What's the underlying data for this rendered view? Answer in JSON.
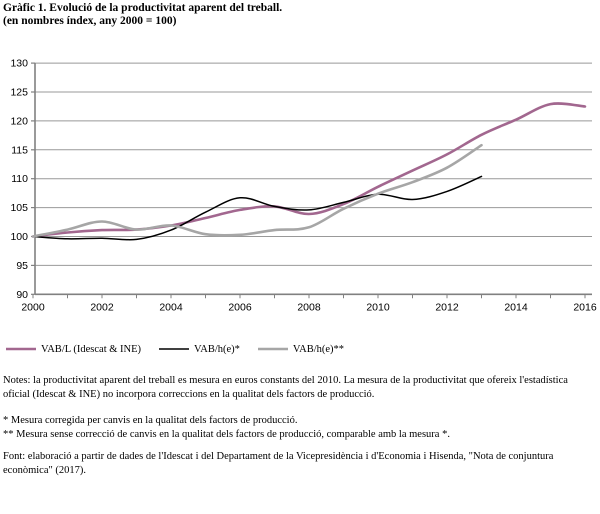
{
  "title": "Gràfic 1. Evolució de la productivitat aparent del treball.",
  "subtitle": "(en nombres índex, any 2000 = 100)",
  "chart_data": {
    "type": "line",
    "x": [
      2000,
      2001,
      2002,
      2003,
      2004,
      2005,
      2006,
      2007,
      2008,
      2009,
      2010,
      2011,
      2012,
      2013,
      2014,
      2015,
      2016
    ],
    "series": [
      {
        "name": "VAB/L (Idescat & INE)",
        "color": "#a2678f",
        "width": 2.6,
        "values": [
          100.0,
          100.7,
          101.1,
          101.2,
          101.9,
          103.2,
          104.6,
          105.2,
          103.9,
          105.6,
          108.6,
          111.4,
          114.2,
          117.6,
          120.2,
          122.9,
          122.5
        ]
      },
      {
        "name": "VAB/h(e)*",
        "color": "#000000",
        "width": 1.5,
        "values": [
          100.0,
          99.6,
          99.7,
          99.5,
          101.1,
          104.2,
          106.7,
          105.2,
          104.6,
          105.9,
          107.3,
          106.4,
          107.8,
          110.4
        ]
      },
      {
        "name": "VAB/h(e)**",
        "color": "#a6a6a6",
        "width": 2.6,
        "values": [
          100.0,
          101.2,
          102.6,
          101.2,
          101.9,
          100.4,
          100.3,
          101.1,
          101.6,
          104.8,
          107.4,
          109.4,
          111.9,
          115.8
        ]
      }
    ],
    "title": "Gràfic 1. Evolució de la productivitat aparent del treball.",
    "xlabel": "",
    "ylabel": "",
    "ylim": [
      90,
      130
    ],
    "ytick_step": 5,
    "xtick_label_step": 2,
    "grid": true,
    "legend_position": "bottom"
  },
  "axis": {
    "y_ticks": [
      "90",
      "95",
      "100",
      "105",
      "110",
      "115",
      "120",
      "125",
      "130"
    ],
    "x_ticks": [
      "2000",
      "2002",
      "2004",
      "2006",
      "2008",
      "2010",
      "2012",
      "2014",
      "2016"
    ]
  },
  "legend": {
    "item1": "VAB/L (Idescat & INE)",
    "item2": "VAB/h(e)*",
    "item3": "VAB/h(e)**"
  },
  "notes": {
    "note": "Notes: la productivitat aparent del treball es mesura en euros constants del 2010. La mesura de la productivitat que ofereix l'estadística oficial (Idescat & INE) no incorpora correccions en la qualitat dels factors de producció.",
    "footnote1": "* Mesura corregida per canvis en la qualitat dels factors de producció.",
    "footnote2": "** Mesura sense correcció de canvis en la qualitat dels factors de producció, comparable amb la mesura *.",
    "source": "Font: elaboració a partir de dades de l'Idescat i del Departament de la Vicepresidència i d'Economia i Hisenda, \"Nota de conjuntura econòmica\" (2017)."
  },
  "colors": {
    "series_pink": "#a2678f",
    "series_black": "#000000",
    "series_gray": "#a6a6a6",
    "gridline": "#999999",
    "spine": "#808080",
    "text": "#000000",
    "background": "#ffffff"
  }
}
